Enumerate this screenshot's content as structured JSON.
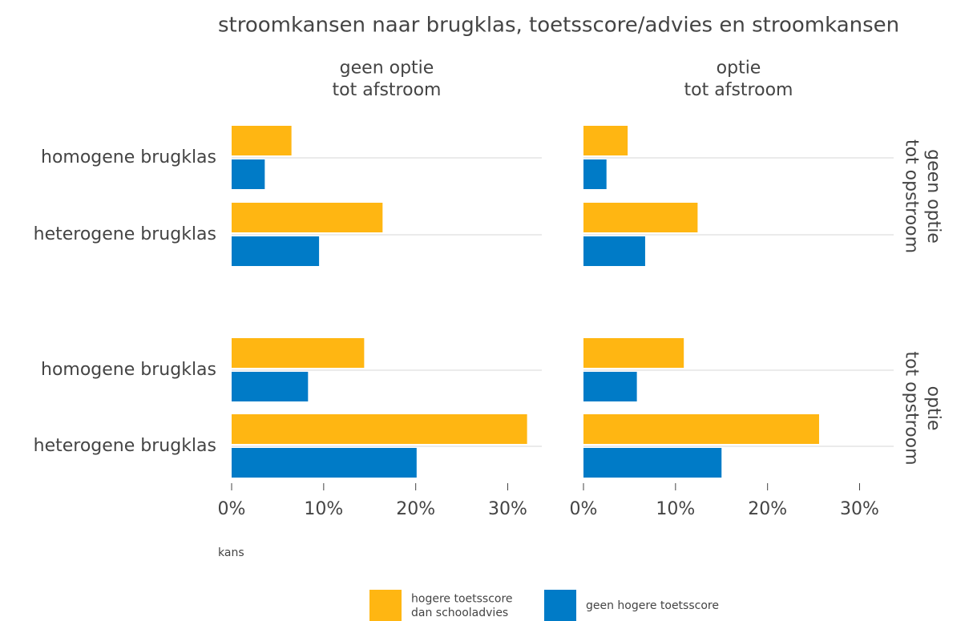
{
  "chart_data": {
    "type": "bar",
    "orientation": "horizontal",
    "title": "stroomkansen naar brugklas, toetsscore/advies en stroomkansen",
    "x_label": "kans",
    "columns": [
      "geen optie\ntot afstroom",
      "optie\ntot afstroom"
    ],
    "rows": [
      "geen optie\ntot opstroom",
      "optie\ntot opstroom"
    ],
    "categories": [
      "homogene brugklas",
      "heterogene brugklas"
    ],
    "series": [
      {
        "name": "hogere toetsscore\ndan schooladvies",
        "color": "#ffb612",
        "values": [
          [
            [
              6.5,
              16.4
            ],
            [
              4.8,
              12.4
            ]
          ],
          [
            [
              14.4,
              32.1
            ],
            [
              10.9,
              25.6
            ]
          ]
        ]
      },
      {
        "name": "geen hogere toetsscore",
        "color": "#007bc7",
        "values": [
          [
            [
              3.6,
              9.5
            ],
            [
              2.5,
              6.7
            ]
          ],
          [
            [
              8.3,
              20.1
            ],
            [
              5.8,
              15.0
            ]
          ]
        ]
      }
    ],
    "xlim": [
      0,
      33.7
    ],
    "xticks": [
      {
        "value": 0,
        "label": "0%"
      },
      {
        "value": 10,
        "label": "10%"
      },
      {
        "value": 20,
        "label": "20%"
      },
      {
        "value": 30,
        "label": "30%"
      }
    ],
    "grid": true,
    "legend": "bottom"
  }
}
